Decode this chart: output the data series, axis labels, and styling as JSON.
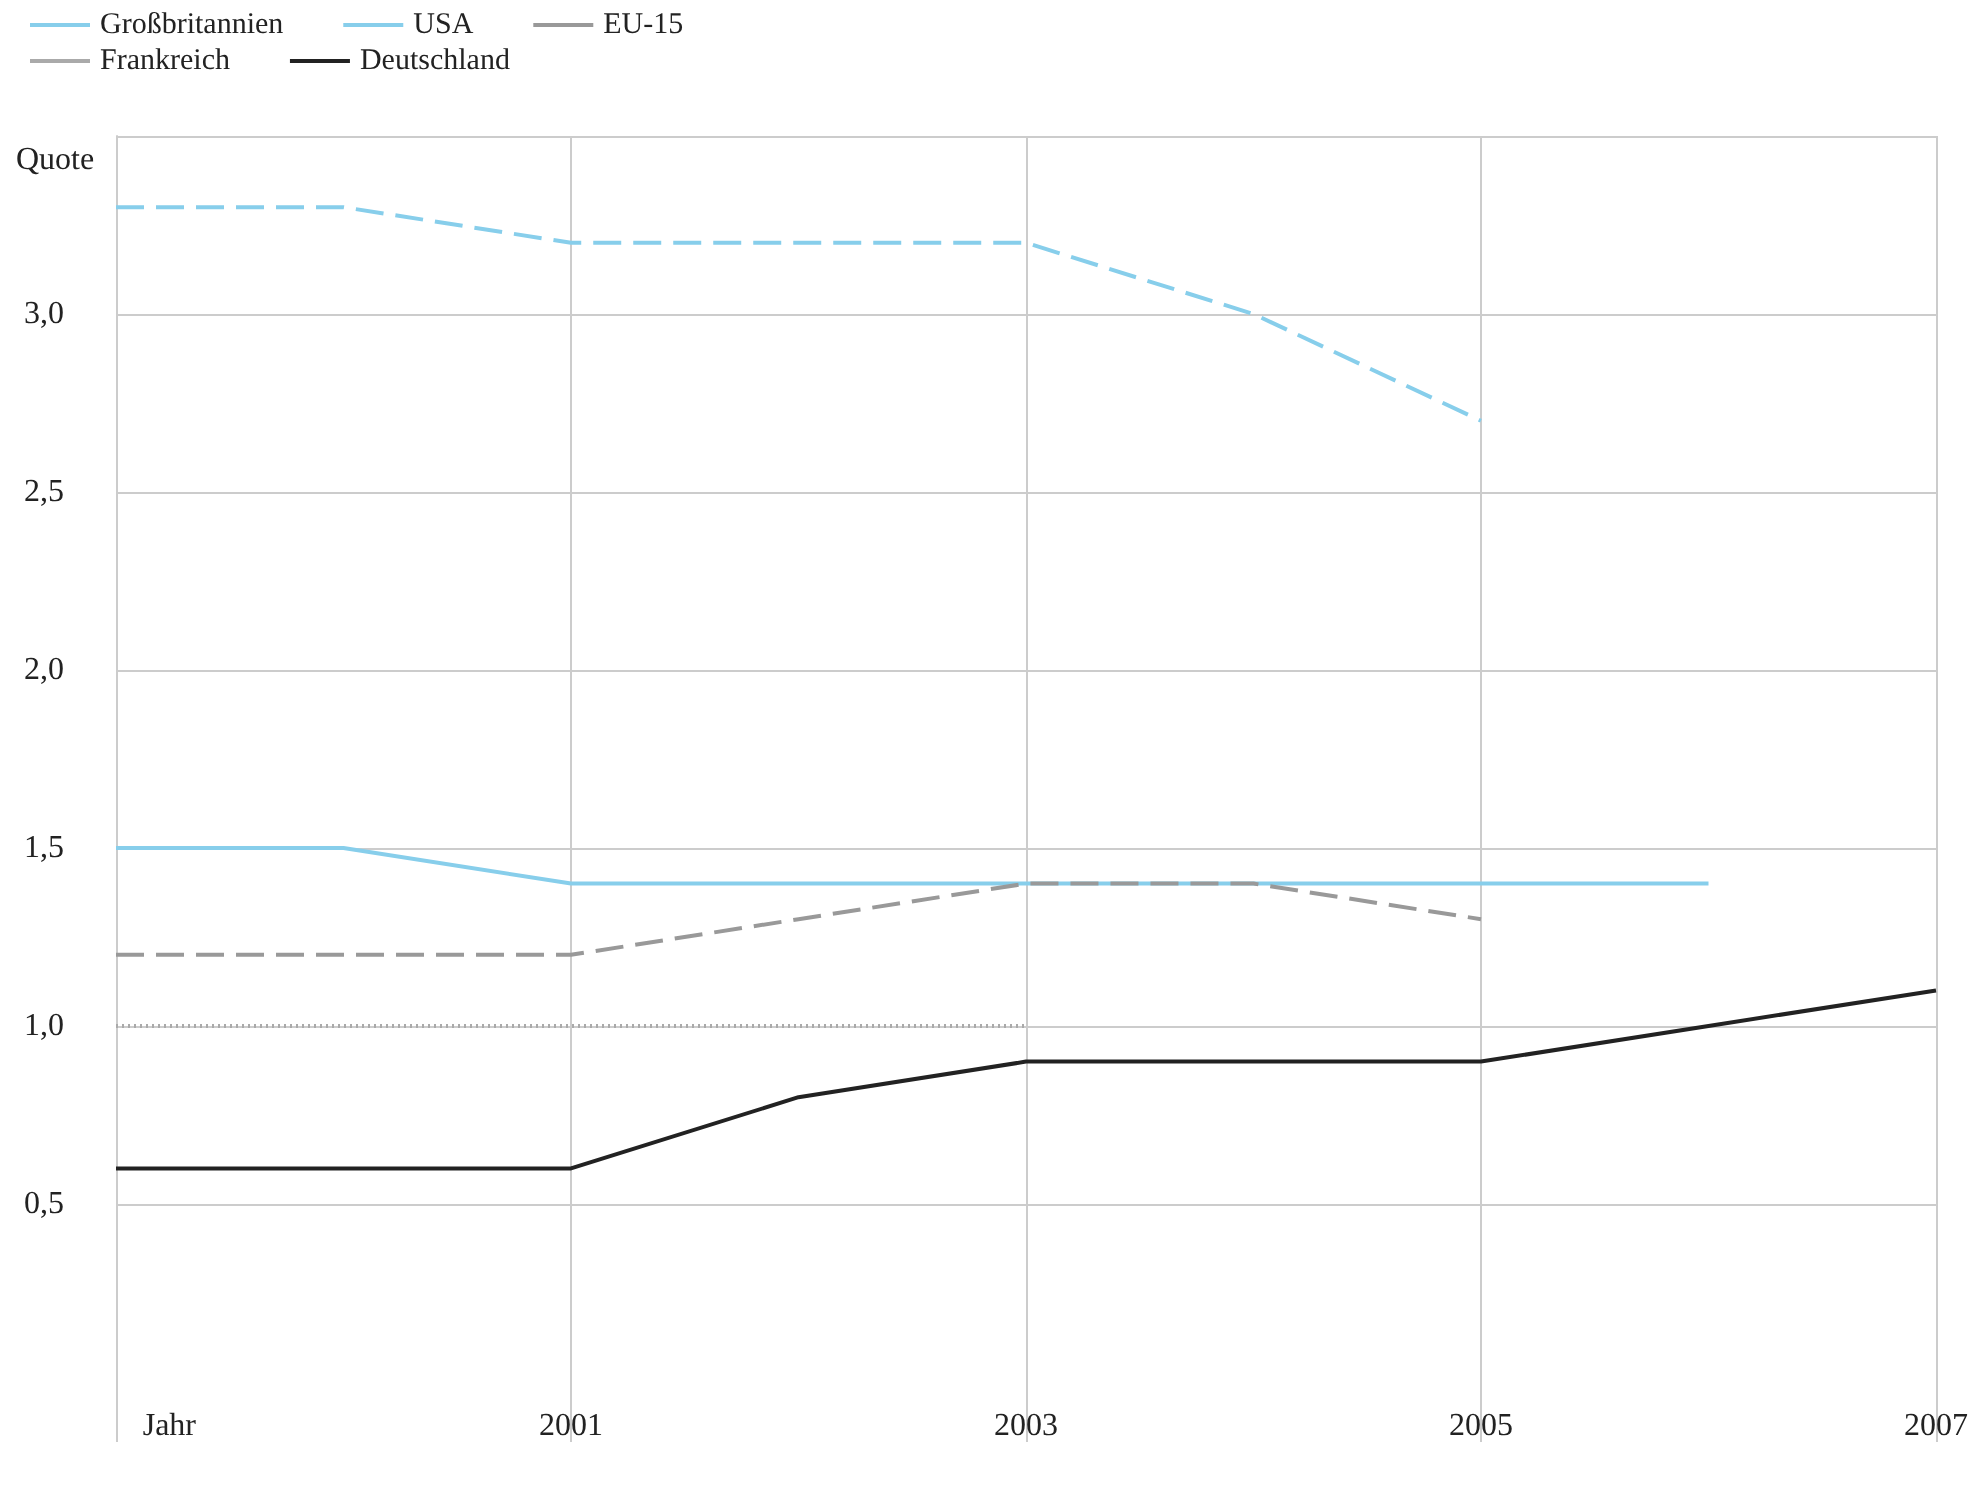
{
  "chart_data": {
    "type": "line",
    "xlabel": "Jahr",
    "ylabel": "Quote",
    "x": [
      1999,
      2000,
      2001,
      2002,
      2003,
      2004,
      2005,
      2006,
      2007
    ],
    "series": [
      {
        "name": "Großbritannien",
        "color": "#87ceeb",
        "line_style": "dashed",
        "values": [
          3.3,
          3.3,
          3.2,
          3.2,
          3.2,
          3.0,
          2.7,
          null,
          null
        ]
      },
      {
        "name": "USA",
        "color": "#87ceeb",
        "line_style": "solid",
        "values": [
          1.5,
          1.5,
          1.4,
          1.4,
          1.4,
          1.4,
          1.4,
          1.4,
          null
        ]
      },
      {
        "name": "EU-15",
        "color": "#999999",
        "line_style": "dashed",
        "values": [
          1.2,
          1.2,
          1.2,
          1.3,
          1.4,
          1.4,
          1.3,
          null,
          null
        ]
      },
      {
        "name": "Frankreich",
        "color": "#aaaaaa",
        "line_style": "dotted",
        "values": [
          1.0,
          1.0,
          1.0,
          1.0,
          1.0,
          null,
          null,
          null,
          null
        ]
      },
      {
        "name": "Deutschland",
        "color": "#222222",
        "line_style": "solid",
        "values": [
          0.6,
          0.6,
          0.6,
          0.8,
          0.9,
          0.9,
          0.9,
          1.0,
          1.1
        ]
      }
    ],
    "xlim": [
      1999,
      2007
    ],
    "xticks": [
      {
        "value": 1999,
        "label": null
      },
      2001,
      2003,
      2005,
      2007
    ],
    "ylim": [
      0,
      3.5
    ],
    "yticks": [
      {
        "value": 0.5,
        "label": "0,5"
      },
      {
        "value": 1.0,
        "label": "1,0"
      },
      {
        "value": 1.5,
        "label": "1,5"
      },
      {
        "value": 2.0,
        "label": "2,0"
      },
      {
        "value": 2.5,
        "label": "2,5"
      },
      {
        "value": 3.0,
        "label": "3,0"
      },
      {
        "value": 3.5,
        "label": null
      }
    ],
    "grid": true,
    "legend": "top left",
    "marker": "none"
  }
}
